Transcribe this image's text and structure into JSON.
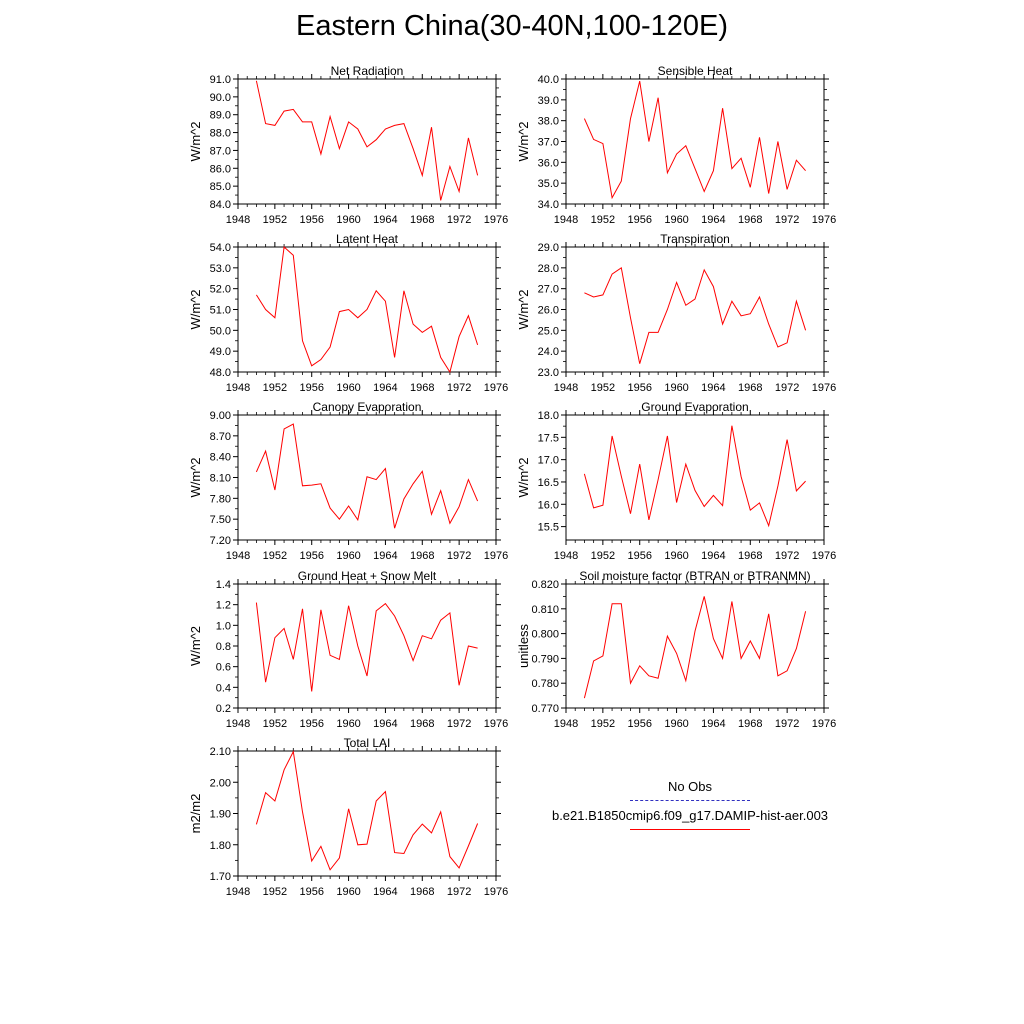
{
  "page": {
    "title": "Eastern China(30-40N,100-120E)"
  },
  "legend": [
    {
      "label": "No Obs",
      "color": "#3030c0",
      "style": "dashed"
    },
    {
      "label": "b.e21.B1850cmip6.f09_g17.DAMIP-hist-aer.003",
      "color": "#ff0000",
      "style": "solid"
    }
  ],
  "chart_data": [
    {
      "type": "line",
      "title": "Net Radiation",
      "ylabel": "W/m^2",
      "xlim": [
        1948,
        1976
      ],
      "xticks": [
        1948,
        1952,
        1956,
        1960,
        1964,
        1968,
        1972,
        1976
      ],
      "ylim": [
        84.0,
        91.0
      ],
      "yticks": [
        84.0,
        85.0,
        86.0,
        87.0,
        88.0,
        89.0,
        90.0,
        91.0
      ],
      "ytick_labels": [
        "84.0",
        "85.0",
        "86.0",
        "87.0",
        "88.0",
        "89.0",
        "90.0",
        "91.0"
      ],
      "series": [
        {
          "color": "#ff0000",
          "x": [
            1950,
            1951,
            1952,
            1953,
            1954,
            1955,
            1956,
            1957,
            1958,
            1959,
            1960,
            1961,
            1962,
            1963,
            1964,
            1965,
            1966,
            1967,
            1968,
            1969,
            1970,
            1971,
            1972,
            1973,
            1974
          ],
          "values": [
            90.9,
            88.5,
            88.4,
            89.2,
            89.3,
            88.6,
            88.6,
            86.8,
            88.9,
            87.1,
            88.6,
            88.2,
            87.2,
            87.6,
            88.2,
            88.4,
            88.5,
            87.1,
            85.6,
            88.3,
            84.2,
            86.1,
            84.7,
            87.7,
            85.6
          ]
        }
      ]
    },
    {
      "type": "line",
      "title": "Sensible Heat",
      "ylabel": "W/m^2",
      "xlim": [
        1948,
        1976
      ],
      "xticks": [
        1948,
        1952,
        1956,
        1960,
        1964,
        1968,
        1972,
        1976
      ],
      "ylim": [
        34.0,
        40.0
      ],
      "yticks": [
        34.0,
        35.0,
        36.0,
        37.0,
        38.0,
        39.0,
        40.0
      ],
      "ytick_labels": [
        "34.0",
        "35.0",
        "36.0",
        "37.0",
        "38.0",
        "39.0",
        "40.0"
      ],
      "series": [
        {
          "color": "#ff0000",
          "x": [
            1950,
            1951,
            1952,
            1953,
            1954,
            1955,
            1956,
            1957,
            1958,
            1959,
            1960,
            1961,
            1962,
            1963,
            1964,
            1965,
            1966,
            1967,
            1968,
            1969,
            1970,
            1971,
            1972,
            1973,
            1974
          ],
          "values": [
            38.1,
            37.1,
            36.9,
            34.3,
            35.1,
            38.1,
            39.9,
            37.0,
            39.1,
            35.5,
            36.4,
            36.8,
            35.7,
            34.6,
            35.6,
            38.6,
            35.7,
            36.2,
            34.8,
            37.2,
            34.5,
            37.0,
            34.7,
            36.1,
            35.6
          ]
        }
      ]
    },
    {
      "type": "line",
      "title": "Latent Heat",
      "ylabel": "W/m^2",
      "xlim": [
        1948,
        1976
      ],
      "xticks": [
        1948,
        1952,
        1956,
        1960,
        1964,
        1968,
        1972,
        1976
      ],
      "ylim": [
        48.0,
        54.0
      ],
      "yticks": [
        48.0,
        49.0,
        50.0,
        51.0,
        52.0,
        53.0,
        54.0
      ],
      "ytick_labels": [
        "48.0",
        "49.0",
        "50.0",
        "51.0",
        "52.0",
        "53.0",
        "54.0"
      ],
      "series": [
        {
          "color": "#ff0000",
          "x": [
            1950,
            1951,
            1952,
            1953,
            1954,
            1955,
            1956,
            1957,
            1958,
            1959,
            1960,
            1961,
            1962,
            1963,
            1964,
            1965,
            1966,
            1967,
            1968,
            1969,
            1970,
            1971,
            1972,
            1973,
            1974
          ],
          "values": [
            51.7,
            51.0,
            50.6,
            54.0,
            53.6,
            49.5,
            48.3,
            48.6,
            49.2,
            50.9,
            51.0,
            50.6,
            51.0,
            51.9,
            51.4,
            48.7,
            51.9,
            50.3,
            49.9,
            50.2,
            48.7,
            48.0,
            49.7,
            50.7,
            49.3
          ]
        }
      ]
    },
    {
      "type": "line",
      "title": "Transpiration",
      "ylabel": "W/m^2",
      "xlim": [
        1948,
        1976
      ],
      "xticks": [
        1948,
        1952,
        1956,
        1960,
        1964,
        1968,
        1972,
        1976
      ],
      "ylim": [
        23.0,
        29.0
      ],
      "yticks": [
        23.0,
        24.0,
        25.0,
        26.0,
        27.0,
        28.0,
        29.0
      ],
      "ytick_labels": [
        "23.0",
        "24.0",
        "25.0",
        "26.0",
        "27.0",
        "28.0",
        "29.0"
      ],
      "series": [
        {
          "color": "#ff0000",
          "x": [
            1950,
            1951,
            1952,
            1953,
            1954,
            1955,
            1956,
            1957,
            1958,
            1959,
            1960,
            1961,
            1962,
            1963,
            1964,
            1965,
            1966,
            1967,
            1968,
            1969,
            1970,
            1971,
            1972,
            1973,
            1974
          ],
          "values": [
            26.8,
            26.6,
            26.7,
            27.7,
            28.0,
            25.6,
            23.4,
            24.9,
            24.9,
            26.0,
            27.3,
            26.2,
            26.5,
            27.9,
            27.1,
            25.3,
            26.4,
            25.7,
            25.8,
            26.6,
            25.3,
            24.2,
            24.4,
            26.4,
            25.0
          ]
        }
      ]
    },
    {
      "type": "line",
      "title": "Canopy Evaporation",
      "ylabel": "W/m^2",
      "xlim": [
        1948,
        1976
      ],
      "xticks": [
        1948,
        1952,
        1956,
        1960,
        1964,
        1968,
        1972,
        1976
      ],
      "ylim": [
        7.2,
        9.0
      ],
      "yticks": [
        7.2,
        7.5,
        7.8,
        8.1,
        8.4,
        8.7,
        9.0
      ],
      "ytick_labels": [
        "7.20",
        "7.50",
        "7.80",
        "8.10",
        "8.40",
        "8.70",
        "9.00"
      ],
      "series": [
        {
          "color": "#ff0000",
          "x": [
            1950,
            1951,
            1952,
            1953,
            1954,
            1955,
            1956,
            1957,
            1958,
            1959,
            1960,
            1961,
            1962,
            1963,
            1964,
            1965,
            1966,
            1967,
            1968,
            1969,
            1970,
            1971,
            1972,
            1973,
            1974
          ],
          "values": [
            8.18,
            8.48,
            7.92,
            8.8,
            8.87,
            7.98,
            7.99,
            8.01,
            7.66,
            7.5,
            7.69,
            7.49,
            8.11,
            8.07,
            8.23,
            7.37,
            7.79,
            8.01,
            8.19,
            7.57,
            7.91,
            7.44,
            7.68,
            8.07,
            7.76
          ]
        }
      ]
    },
    {
      "type": "line",
      "title": "Ground Evaporation",
      "ylabel": "W/m^2",
      "xlim": [
        1948,
        1976
      ],
      "xticks": [
        1948,
        1952,
        1956,
        1960,
        1964,
        1968,
        1972,
        1976
      ],
      "ylim": [
        15.2,
        18.0
      ],
      "yticks": [
        15.5,
        16.0,
        16.5,
        17.0,
        17.5,
        18.0
      ],
      "ytick_labels": [
        "15.5",
        "16.0",
        "16.5",
        "17.0",
        "17.5",
        "18.0"
      ],
      "series": [
        {
          "color": "#ff0000",
          "x": [
            1950,
            1951,
            1952,
            1953,
            1954,
            1955,
            1956,
            1957,
            1958,
            1959,
            1960,
            1961,
            1962,
            1963,
            1964,
            1965,
            1966,
            1967,
            1968,
            1969,
            1970,
            1971,
            1972,
            1973,
            1974
          ],
          "values": [
            16.68,
            15.92,
            15.98,
            17.53,
            16.63,
            15.79,
            16.9,
            15.65,
            16.55,
            17.53,
            16.04,
            16.9,
            16.31,
            15.95,
            16.2,
            15.97,
            17.76,
            16.62,
            15.87,
            16.03,
            15.52,
            16.41,
            17.45,
            16.3,
            16.52
          ]
        }
      ]
    },
    {
      "type": "line",
      "title": "Ground Heat + Snow Melt",
      "ylabel": "W/m^2",
      "xlim": [
        1948,
        1976
      ],
      "xticks": [
        1948,
        1952,
        1956,
        1960,
        1964,
        1968,
        1972,
        1976
      ],
      "ylim": [
        0.2,
        1.4
      ],
      "yticks": [
        0.2,
        0.4,
        0.6,
        0.8,
        1.0,
        1.2,
        1.4
      ],
      "ytick_labels": [
        "0.2",
        "0.4",
        "0.6",
        "0.8",
        "1.0",
        "1.2",
        "1.4"
      ],
      "series": [
        {
          "color": "#ff0000",
          "x": [
            1950,
            1951,
            1952,
            1953,
            1954,
            1955,
            1956,
            1957,
            1958,
            1959,
            1960,
            1961,
            1962,
            1963,
            1964,
            1965,
            1966,
            1967,
            1968,
            1969,
            1970,
            1971,
            1972,
            1973,
            1974
          ],
          "values": [
            1.22,
            0.45,
            0.88,
            0.97,
            0.67,
            1.16,
            0.36,
            1.15,
            0.71,
            0.67,
            1.19,
            0.8,
            0.51,
            1.14,
            1.21,
            1.09,
            0.9,
            0.66,
            0.9,
            0.87,
            1.05,
            1.12,
            0.42,
            0.8,
            0.78
          ]
        }
      ]
    },
    {
      "type": "line",
      "title": "Soil moisture factor (BTRAN or BTRANMN)",
      "ylabel": "unitless",
      "xlim": [
        1948,
        1976
      ],
      "xticks": [
        1948,
        1952,
        1956,
        1960,
        1964,
        1968,
        1972,
        1976
      ],
      "ylim": [
        0.77,
        0.82
      ],
      "yticks": [
        0.77,
        0.78,
        0.79,
        0.8,
        0.81,
        0.82
      ],
      "ytick_labels": [
        "0.770",
        "0.780",
        "0.790",
        "0.800",
        "0.810",
        "0.820"
      ],
      "series": [
        {
          "color": "#ff0000",
          "x": [
            1950,
            1951,
            1952,
            1953,
            1954,
            1955,
            1956,
            1957,
            1958,
            1959,
            1960,
            1961,
            1962,
            1963,
            1964,
            1965,
            1966,
            1967,
            1968,
            1969,
            1970,
            1971,
            1972,
            1973,
            1974
          ],
          "values": [
            0.774,
            0.789,
            0.791,
            0.812,
            0.812,
            0.78,
            0.787,
            0.783,
            0.782,
            0.799,
            0.792,
            0.781,
            0.801,
            0.815,
            0.798,
            0.79,
            0.813,
            0.79,
            0.797,
            0.79,
            0.808,
            0.783,
            0.785,
            0.794,
            0.809
          ]
        }
      ]
    },
    {
      "type": "line",
      "title": "Total LAI",
      "ylabel": "m2/m2",
      "xlim": [
        1948,
        1976
      ],
      "xticks": [
        1948,
        1952,
        1956,
        1960,
        1964,
        1968,
        1972,
        1976
      ],
      "ylim": [
        1.7,
        2.1
      ],
      "yticks": [
        1.7,
        1.8,
        1.9,
        2.0,
        2.1
      ],
      "ytick_labels": [
        "1.70",
        "1.80",
        "1.90",
        "2.00",
        "2.10"
      ],
      "series": [
        {
          "color": "#ff0000",
          "x": [
            1950,
            1951,
            1952,
            1953,
            1954,
            1955,
            1956,
            1957,
            1958,
            1959,
            1960,
            1961,
            1962,
            1963,
            1964,
            1965,
            1966,
            1967,
            1968,
            1969,
            1970,
            1971,
            1972,
            1973,
            1974
          ],
          "values": [
            1.865,
            1.967,
            1.94,
            2.04,
            2.098,
            1.905,
            1.748,
            1.795,
            1.72,
            1.758,
            1.915,
            1.8,
            1.802,
            1.94,
            1.97,
            1.775,
            1.772,
            1.832,
            1.866,
            1.838,
            1.905,
            1.762,
            1.726,
            1.796,
            1.868
          ]
        }
      ]
    }
  ]
}
